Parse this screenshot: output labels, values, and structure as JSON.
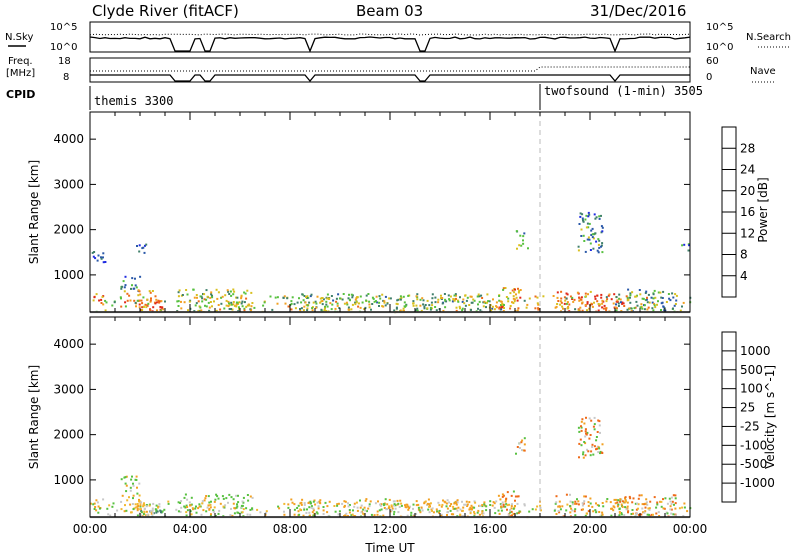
{
  "header": {
    "station": "Clyde River (fitACF)",
    "beam": "Beam 03",
    "date": "31/Dec/2016"
  },
  "noise_panel": {
    "left_label": "N.Sky",
    "left_ticks": [
      "10^5",
      "10^0"
    ],
    "right_label": "N.Search",
    "right_ticks": [
      "10^5",
      "10^0"
    ]
  },
  "freq_panel": {
    "left_label_line1": "Freq.",
    "left_label_line2": "[MHz]",
    "left_ticks": [
      "18",
      "8"
    ],
    "right_label": "Nave",
    "right_ticks": [
      "60",
      "0"
    ]
  },
  "cpid_panel": {
    "label": "CPID",
    "modes": [
      {
        "name": "themis 3300",
        "start": "00:00"
      },
      {
        "name": "twofsound (1-min) 3505",
        "start": "18:00"
      }
    ]
  },
  "axes": {
    "xlabel": "Time UT",
    "xticks": [
      "00:00",
      "04:00",
      "08:00",
      "12:00",
      "16:00",
      "20:00",
      "00:00"
    ],
    "ylabel": "Slant Range [km]",
    "yticks": [
      "1000",
      "2000",
      "3000",
      "4000"
    ]
  },
  "chart_data": [
    {
      "type": "heatmap",
      "title": "",
      "xlabel": "",
      "ylabel": "Slant Range [km]",
      "xlim": [
        0,
        24
      ],
      "ylim": [
        180,
        4600
      ],
      "colorbar": {
        "label": "Power [dB]",
        "ticks": [
          "4",
          "8",
          "12",
          "16",
          "20",
          "24",
          "28"
        ],
        "levels": [
          0,
          4,
          8,
          12,
          16,
          20,
          24,
          28,
          32
        ],
        "colors": [
          "#1f2be0",
          "#2a58a8",
          "#3f7f6a",
          "#57c03f",
          "#d8c020",
          "#f2a020",
          "#ee6a18",
          "#e02818"
        ]
      },
      "ground_scatter_range_km": 200,
      "mode_change_time_h": 18.0,
      "echo_regions": [
        {
          "t": [
            0.1,
            0.5
          ],
          "range_km": [
            300,
            600
          ],
          "value": 26
        },
        {
          "t": [
            0.0,
            0.6
          ],
          "range_km": [
            1300,
            1600
          ],
          "value": 4
        },
        {
          "t": [
            1.2,
            2.0
          ],
          "range_km": [
            650,
            1000
          ],
          "value": 10
        },
        {
          "t": [
            1.6,
            2.3
          ],
          "range_km": [
            1500,
            1700
          ],
          "value": 5
        },
        {
          "t": [
            1.8,
            3.0
          ],
          "range_km": [
            200,
            500
          ],
          "value": 30
        },
        {
          "t": [
            1.3,
            2.7
          ],
          "range_km": [
            300,
            700
          ],
          "value": 22
        },
        {
          "t": [
            3.5,
            6.5
          ],
          "range_km": [
            200,
            700
          ],
          "value": 16
        },
        {
          "t": [
            8.0,
            16.5
          ],
          "range_km": [
            200,
            600
          ],
          "value": 14
        },
        {
          "t": [
            16.3,
            17.2
          ],
          "range_km": [
            200,
            800
          ],
          "value": 22
        },
        {
          "t": [
            17.0,
            17.5
          ],
          "range_km": [
            1600,
            2000
          ],
          "value": 14
        },
        {
          "t": [
            18.5,
            20.0
          ],
          "range_km": [
            200,
            700
          ],
          "value": 24
        },
        {
          "t": [
            19.5,
            20.5
          ],
          "range_km": [
            1500,
            2400
          ],
          "value": 10
        },
        {
          "t": [
            20.0,
            21.5
          ],
          "range_km": [
            200,
            600
          ],
          "value": 28
        },
        {
          "t": [
            21.0,
            23.5
          ],
          "range_km": [
            200,
            700
          ],
          "value": 12
        },
        {
          "t": [
            23.6,
            24.0
          ],
          "range_km": [
            1500,
            1700
          ],
          "value": 6
        }
      ]
    },
    {
      "type": "heatmap",
      "title": "",
      "xlabel": "Time UT",
      "ylabel": "Slant Range [km]",
      "xlim": [
        0,
        24
      ],
      "ylim": [
        180,
        4600
      ],
      "colorbar": {
        "label": "Velocity [m s^-1]",
        "ticks": [
          "1000",
          "500",
          "100",
          "25",
          "-25",
          "-100",
          "-500",
          "-1000"
        ],
        "levels": [
          1200,
          1000,
          500,
          100,
          25,
          -25,
          -100,
          -500,
          -1000,
          -1200
        ],
        "colors": [
          "#1f3fb8",
          "#2a58a8",
          "#3f7f6a",
          "#57c03f",
          "#c8c8c8",
          "#f2b830",
          "#f2a020",
          "#ee6a18",
          "#e02818"
        ]
      },
      "ground_scatter_range_km": 200,
      "mode_change_time_h": 18.0,
      "echo_regions": [
        {
          "t": [
            0.1,
            0.5
          ],
          "range_km": [
            300,
            600
          ],
          "value": -100
        },
        {
          "t": [
            1.2,
            2.0
          ],
          "range_km": [
            650,
            1100
          ],
          "value": 100
        },
        {
          "t": [
            1.8,
            3.0
          ],
          "range_km": [
            200,
            500
          ],
          "value": 500
        },
        {
          "t": [
            1.3,
            2.7
          ],
          "range_km": [
            300,
            700
          ],
          "value": -25
        },
        {
          "t": [
            3.5,
            6.5
          ],
          "range_km": [
            200,
            700
          ],
          "value": 100
        },
        {
          "t": [
            8.0,
            16.5
          ],
          "range_km": [
            200,
            600
          ],
          "value": -100
        },
        {
          "t": [
            16.3,
            17.2
          ],
          "range_km": [
            200,
            800
          ],
          "value": -500
        },
        {
          "t": [
            17.0,
            17.5
          ],
          "range_km": [
            1600,
            2000
          ],
          "value": -500
        },
        {
          "t": [
            18.5,
            20.0
          ],
          "range_km": [
            200,
            700
          ],
          "value": -500
        },
        {
          "t": [
            19.5,
            20.5
          ],
          "range_km": [
            1500,
            2400
          ],
          "value": -500
        },
        {
          "t": [
            20.0,
            21.5
          ],
          "range_km": [
            200,
            600
          ],
          "value": -100
        },
        {
          "t": [
            21.0,
            23.5
          ],
          "range_km": [
            200,
            700
          ],
          "value": -500
        }
      ]
    }
  ]
}
